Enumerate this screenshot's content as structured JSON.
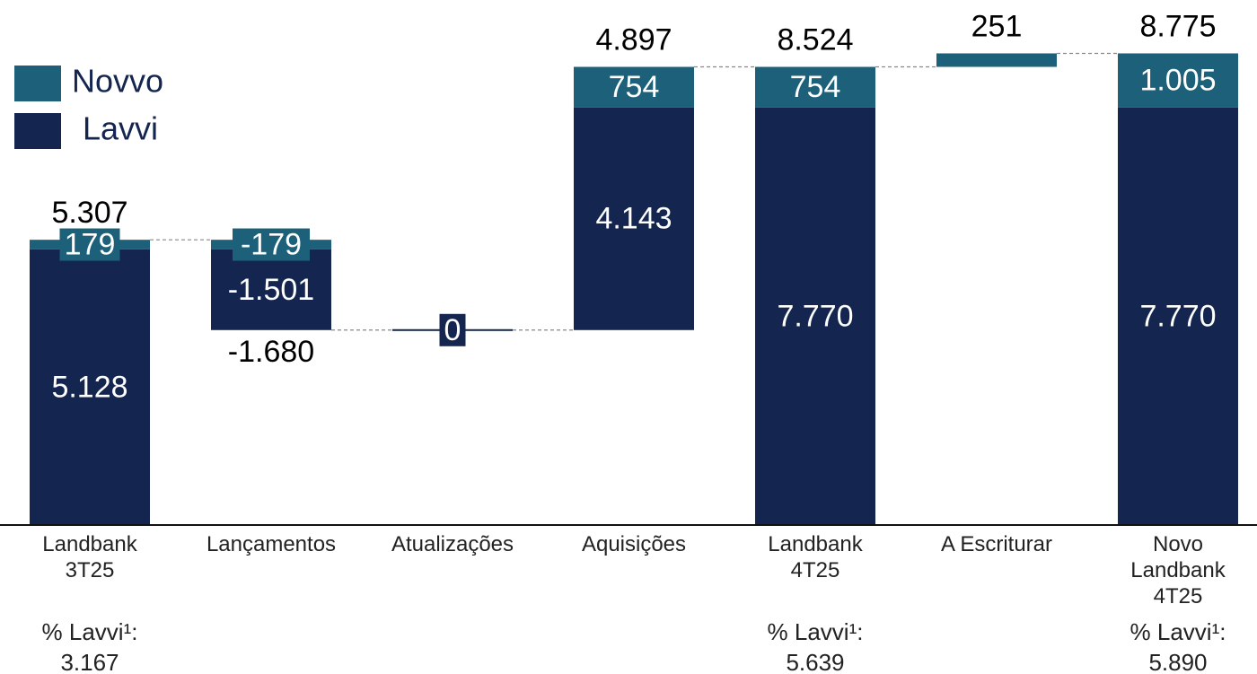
{
  "chart_data": {
    "type": "waterfall",
    "categories": [
      "Landbank 3T25",
      "Lançamentos",
      "Atualizações",
      "Aquisições",
      "Landbank 4T25",
      "A Escriturar",
      "Novo Landbank 4T25"
    ],
    "bar_kinds": [
      "total",
      "delta",
      "delta",
      "delta",
      "total",
      "delta",
      "total"
    ],
    "series": [
      {
        "name": "Novvo",
        "color": "#1c6079",
        "values": [
          179,
          -179,
          null,
          754,
          754,
          251,
          1005
        ],
        "value_labels": [
          "179",
          "-179",
          null,
          "754",
          "754",
          null,
          "1.005"
        ]
      },
      {
        "name": "Lavvi",
        "color": "#14254f",
        "values": [
          5128,
          -1501,
          0,
          4143,
          7770,
          null,
          7770
        ],
        "value_labels": [
          "5.128",
          "-1.501",
          "0",
          "4.143",
          "7.770",
          null,
          "7.770"
        ]
      }
    ],
    "totals": [
      5307,
      -1680,
      null,
      4897,
      8524,
      251,
      8775
    ],
    "total_labels": [
      "5.307",
      "-1.680",
      null,
      "4.897",
      "8.524",
      "251",
      "8.775"
    ],
    "lavvi_share": {
      "label": "% Lavvi¹:",
      "values": [
        "3.167",
        null,
        null,
        null,
        "5.639",
        null,
        "5.890"
      ]
    },
    "ylim": [
      0,
      9000
    ],
    "legend": "top-left"
  }
}
